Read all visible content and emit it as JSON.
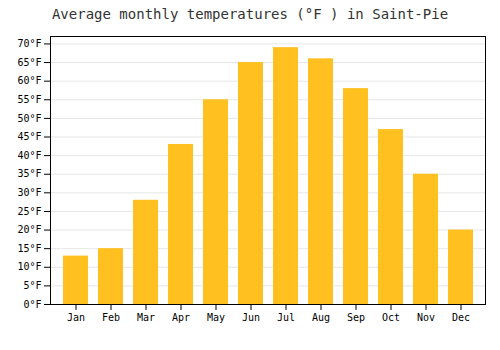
{
  "chart_data": {
    "type": "bar",
    "title": "Average monthly temperatures (°F ) in Saint-Pie",
    "categories": [
      "Jan",
      "Feb",
      "Mar",
      "Apr",
      "May",
      "Jun",
      "Jul",
      "Aug",
      "Sep",
      "Oct",
      "Nov",
      "Dec"
    ],
    "values": [
      13,
      15,
      28,
      43,
      55,
      65,
      69,
      66,
      58,
      47,
      35,
      20
    ],
    "color": "#FFC020",
    "ylim": [
      0,
      72
    ],
    "yticks": [
      {
        "value": 0,
        "label": "0°F"
      },
      {
        "value": 5,
        "label": "5°F"
      },
      {
        "value": 10,
        "label": "10°F"
      },
      {
        "value": 15,
        "label": "15°F"
      },
      {
        "value": 20,
        "label": "20°F"
      },
      {
        "value": 25,
        "label": "25°F"
      },
      {
        "value": 30,
        "label": "30°F"
      },
      {
        "value": 35,
        "label": "35°F"
      },
      {
        "value": 40,
        "label": "40°F"
      },
      {
        "value": 45,
        "label": "45°F"
      },
      {
        "value": 50,
        "label": "50°F"
      },
      {
        "value": 55,
        "label": "55°F"
      },
      {
        "value": 60,
        "label": "60°F"
      },
      {
        "value": 65,
        "label": "65°F"
      },
      {
        "value": 70,
        "label": "70°F"
      }
    ],
    "grid": true
  }
}
